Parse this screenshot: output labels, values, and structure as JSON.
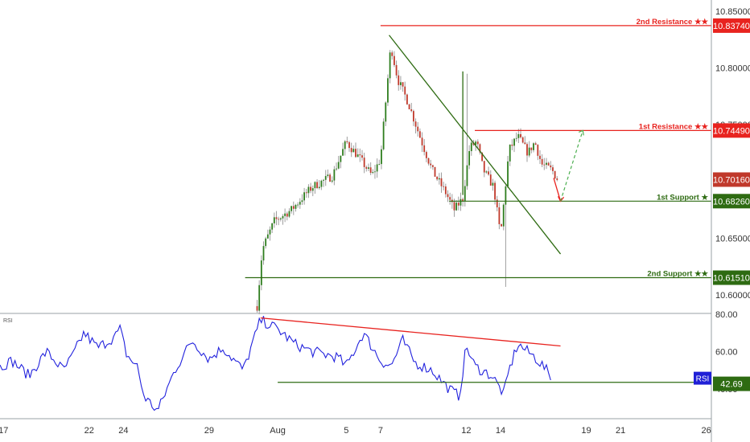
{
  "colors": {
    "up": "#2e7d1e",
    "down": "#c0392b",
    "wick": "#9e9e9e",
    "resistance": "#e8231f",
    "support": "#2e6b12",
    "rsi": "#2222dd",
    "axis_text": "#333333",
    "rsi_badge": "#1f1fd6"
  },
  "chart_data": [
    {
      "type": "candlestick",
      "title": "",
      "ylim": [
        10.585,
        10.86
      ],
      "y_ticks": [
        "10.85000",
        "10.80000",
        "10.75000",
        "10.70000",
        "10.65000",
        "10.60000"
      ],
      "y_tick_values": [
        10.85,
        10.8,
        10.75,
        10.7,
        10.65,
        10.6
      ],
      "x_ticks": [
        "17",
        "22",
        "24",
        "29",
        "Aug",
        "5",
        "7",
        "12",
        "14",
        "19",
        "21",
        "26"
      ],
      "x_tick_days": [
        -15,
        -10,
        -8,
        -3,
        1,
        5,
        7,
        12,
        14,
        19,
        21,
        26
      ],
      "xlim": [
        -15.2,
        26.3
      ],
      "anchors_day": [
        -0.2,
        0.1,
        0.8,
        1.8,
        3.0,
        4.2,
        5.0,
        5.8,
        6.5,
        7.0,
        7.6,
        8.0,
        8.6,
        9.4,
        10.0,
        10.8,
        11.3,
        11.8,
        12.2,
        12.6,
        13.0,
        13.6,
        14.0,
        14.5,
        15.0,
        15.6,
        16.0,
        16.4,
        17.0,
        17.4
      ],
      "anchors_price": [
        10.59,
        10.64,
        10.665,
        10.675,
        10.695,
        10.705,
        10.735,
        10.72,
        10.705,
        10.72,
        10.82,
        10.79,
        10.77,
        10.735,
        10.71,
        10.69,
        10.675,
        10.685,
        10.73,
        10.735,
        10.71,
        10.695,
        10.652,
        10.728,
        10.74,
        10.725,
        10.735,
        10.715,
        10.71,
        10.7
      ],
      "overshoot_high": {
        "day": 12.0,
        "price": 10.795
      },
      "overshoot_low": {
        "day": 14.3,
        "price": 10.607
      },
      "levels": [
        {
          "label": "2nd Resistance ★★",
          "value": "10.83740",
          "price": 10.8374,
          "kind": "resistance",
          "from_day": 7.0
        },
        {
          "label": "1st Resistance ★★",
          "value": "10.74490",
          "price": 10.7449,
          "kind": "resistance",
          "from_day": 12.5
        },
        {
          "label": "1st Support ★",
          "value": "10.68260",
          "price": 10.6826,
          "kind": "support",
          "from_day": 11.0
        },
        {
          "label": "2nd Support ★★",
          "value": "10.61510",
          "price": 10.6151,
          "kind": "support",
          "from_day": -0.9
        }
      ],
      "current_price": "10.70160",
      "current_price_value": 10.7016,
      "trendline": {
        "from": [
          7.5,
          10.829
        ],
        "to": [
          17.5,
          10.636
        ]
      },
      "vertical_line": {
        "day": 11.8,
        "from": 10.688,
        "to": 10.797
      },
      "projection": {
        "from": [
          17.1,
          10.703
        ],
        "mid": [
          17.5,
          10.6826
        ],
        "to": [
          18.8,
          10.7449
        ]
      }
    },
    {
      "type": "line",
      "name": "RSI",
      "series_label": "RSI",
      "ylim": [
        24,
        80
      ],
      "y_ticks": [
        "80.00",
        "60.00",
        "40.00"
      ],
      "y_tick_values": [
        80,
        60,
        40
      ],
      "value": "42.69",
      "value_num": 42.69,
      "anchors_day": [
        -15.2,
        -14.5,
        -13.5,
        -12.5,
        -11.5,
        -11.0,
        -10.3,
        -9.5,
        -8.5,
        -8.2,
        -7.8,
        -7.2,
        -6.8,
        -6.0,
        -5.0,
        -4.0,
        -3.0,
        -2.2,
        -1.5,
        -1.0,
        0.0,
        1.0,
        2.0,
        3.0,
        4.5,
        5.0,
        6.0,
        7.0,
        7.6,
        8.3,
        9.0,
        10.0,
        11.0,
        11.6,
        12.0,
        12.5,
        13.5,
        14.2,
        14.5,
        15.0,
        16.0,
        16.5,
        17.0
      ],
      "anchors_rsi": [
        52,
        55,
        47,
        60,
        50,
        57,
        70,
        62,
        68,
        72,
        58,
        52,
        36,
        28,
        50,
        66,
        56,
        62,
        55,
        50,
        77,
        72,
        64,
        60,
        57,
        52,
        70,
        55,
        52,
        66,
        54,
        50,
        40,
        36,
        63,
        52,
        47,
        37,
        50,
        64,
        57,
        52,
        46
      ],
      "resistance_line": {
        "from": [
          0.0,
          78.0
        ],
        "to": [
          17.5,
          63.0
        ]
      },
      "support_line_value": 43.5,
      "support_line_from_day": 1.0
    }
  ]
}
